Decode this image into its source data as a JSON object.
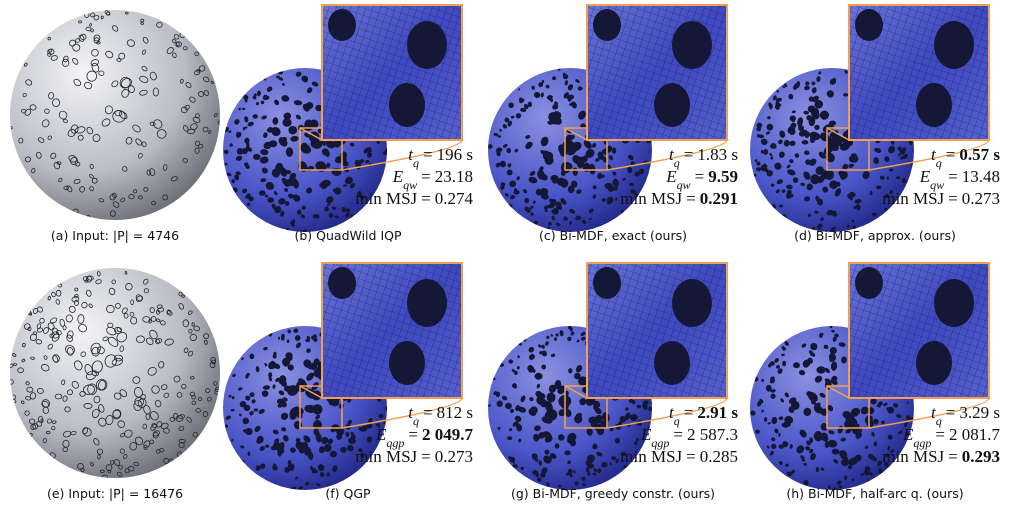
{
  "panels": [
    {
      "caption": "(a) Input: |P| = 4746"
    },
    {
      "caption": "(b) QuadWild IQP",
      "stats": [
        {
          "lhs": "t",
          "sub": "q",
          "eq": "=",
          "value": "196 s",
          "bold": false
        },
        {
          "lhs": "E",
          "sub": "qw",
          "eq": "=",
          "value": "23.18",
          "bold": false
        },
        {
          "lhs": "min MSJ",
          "eq": "=",
          "value": "0.274",
          "bold": false
        }
      ]
    },
    {
      "caption": "(c) Bi-MDF, exact (ours)",
      "stats": [
        {
          "lhs": "t",
          "sub": "q",
          "eq": "=",
          "value": "1.83 s",
          "bold": false
        },
        {
          "lhs": "E",
          "sub": "qw",
          "eq": "=",
          "value": "9.59",
          "bold": true
        },
        {
          "lhs": "min MSJ",
          "eq": "=",
          "value": "0.291",
          "bold": true
        }
      ]
    },
    {
      "caption": "(d) Bi-MDF, approx. (ours)",
      "stats": [
        {
          "lhs": "t",
          "sub": "q",
          "eq": "=",
          "value": "0.57 s",
          "bold": true
        },
        {
          "lhs": "E",
          "sub": "qw",
          "eq": "=",
          "value": "13.48",
          "bold": false
        },
        {
          "lhs": "min MSJ",
          "eq": "=",
          "value": "0.273",
          "bold": false
        }
      ]
    },
    {
      "caption": "(e) Input: |P| = 16476"
    },
    {
      "caption": "(f) QGP",
      "stats": [
        {
          "lhs": "t",
          "sub": "q",
          "eq": "=",
          "value": "812 s",
          "bold": false
        },
        {
          "lhs": "E",
          "sub": "qgp",
          "eq": "=",
          "value": "2 049.7",
          "bold": true
        },
        {
          "lhs": "min MSJ",
          "eq": "=",
          "value": "0.273",
          "bold": false
        }
      ]
    },
    {
      "caption": "(g) Bi-MDF, greedy constr. (ours)",
      "stats": [
        {
          "lhs": "t",
          "sub": "q",
          "eq": "=",
          "value": "2.91 s",
          "bold": true
        },
        {
          "lhs": "E",
          "sub": "qgp",
          "eq": "=",
          "value": "2 587.3",
          "bold": false
        },
        {
          "lhs": "min MSJ",
          "eq": "=",
          "value": "0.285",
          "bold": false
        }
      ]
    },
    {
      "caption": "(h) Bi-MDF, half-arc q. (ours)",
      "stats": [
        {
          "lhs": "t",
          "sub": "q",
          "eq": "=",
          "value": "3.29 s",
          "bold": false
        },
        {
          "lhs": "E",
          "sub": "qgp",
          "eq": "=",
          "value": "2 081.7",
          "bold": false
        },
        {
          "lhs": "min MSJ",
          "eq": "=",
          "value": "0.293",
          "bold": true
        }
      ]
    }
  ]
}
